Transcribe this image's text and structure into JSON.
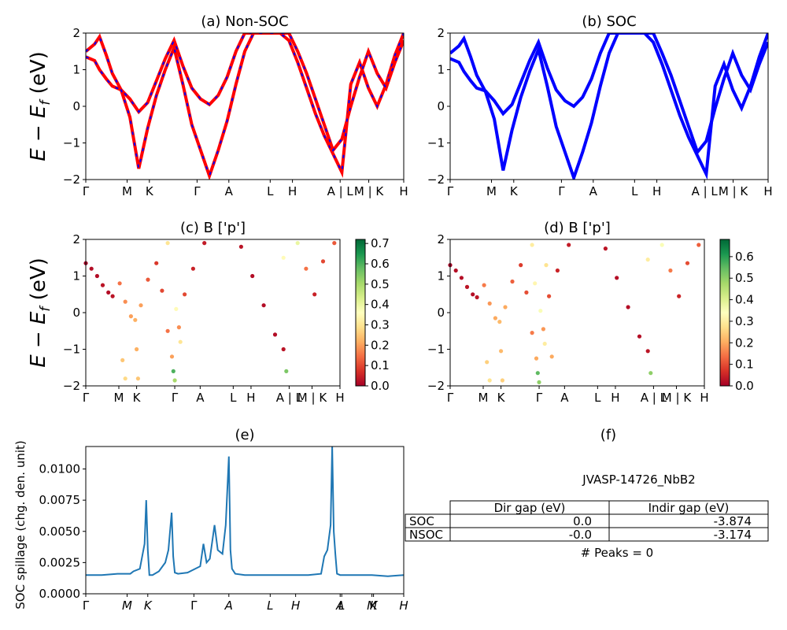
{
  "colors": {
    "nonsoc_line": "#ff0000",
    "nonsoc_dash": "#0000ff",
    "soc_line": "#0000ff",
    "spillage_line": "#1f77b4",
    "colormap": [
      "#a50026",
      "#d73027",
      "#f46d43",
      "#fdae61",
      "#fee08b",
      "#ffffbf",
      "#d9ef8b",
      "#a6d96a",
      "#66bd63",
      "#1a9850",
      "#006837"
    ]
  },
  "kpath_labels": [
    "Γ",
    "M",
    "K",
    "Γ",
    "A",
    "L",
    "H",
    "A | L",
    "M | K",
    "H"
  ],
  "chart_data": [
    {
      "id": "a",
      "type": "line",
      "title": "(a) Non-SOC",
      "ylabel": "E − E_f (eV)",
      "ylim": [
        -2,
        2
      ],
      "yticks": [
        "2",
        "1",
        "0",
        "−1",
        "−2"
      ],
      "xticks": [
        "Γ",
        "M",
        "K",
        "Γ",
        "A",
        "L",
        "H",
        "A | L",
        "M | K",
        "H"
      ],
      "x": [
        0,
        0.25,
        0.39,
        0.58,
        0.75,
        1.0,
        1.25,
        1.5,
        1.75,
        2.0,
        2.25,
        2.5,
        2.75,
        3.0,
        3.25,
        3.5,
        3.75,
        4.0,
        4.25,
        4.5,
        4.75,
        5.0,
        5.25,
        5.5,
        5.75,
        6.0,
        6.25,
        6.5,
        6.75,
        7.0,
        7.25,
        7.5,
        7.75,
        8.0,
        8.25,
        8.5,
        8.75,
        9.0
      ],
      "series": [
        {
          "values": [
            1.35,
            1.25,
            1.0,
            0.75,
            0.55,
            0.45,
            0.2,
            -0.15,
            0.1,
            0.7,
            1.3,
            1.8,
            1.1,
            0.5,
            0.2,
            0.05,
            0.3,
            0.8,
            1.5,
            2.0,
            2.0,
            2.0,
            2.0,
            2.0,
            1.8,
            1.2,
            0.5,
            -0.2,
            -0.8,
            -1.3,
            -1.8,
            0.6,
            1.2,
            0.5,
            0.0,
            0.6,
            1.4,
            2.0
          ]
        },
        {
          "values": [
            1.5,
            1.7,
            1.9,
            1.4,
            0.9,
            0.45,
            -0.3,
            -1.7,
            -0.6,
            0.3,
            1.0,
            1.6,
            0.6,
            -0.5,
            -1.2,
            -1.9,
            -1.2,
            -0.4,
            0.6,
            1.5,
            2.0,
            2.0,
            2.0,
            2.0,
            2.0,
            1.5,
            0.9,
            0.2,
            -0.5,
            -1.2,
            -0.9,
            0.0,
            0.8,
            1.5,
            0.9,
            0.5,
            1.2,
            1.8
          ]
        }
      ]
    },
    {
      "id": "b",
      "type": "line",
      "title": "(b) SOC",
      "ylim": [
        -2,
        2
      ],
      "yticks": [
        "2",
        "1",
        "0",
        "−1",
        "−2"
      ],
      "xticks": [
        "Γ",
        "M",
        "K",
        "Γ",
        "A",
        "L",
        "H",
        "A | L",
        "M | K",
        "H"
      ],
      "x": [
        0,
        0.25,
        0.39,
        0.58,
        0.75,
        1.0,
        1.25,
        1.5,
        1.75,
        2.0,
        2.25,
        2.5,
        2.75,
        3.0,
        3.25,
        3.5,
        3.75,
        4.0,
        4.25,
        4.5,
        4.75,
        5.0,
        5.25,
        5.5,
        5.75,
        6.0,
        6.25,
        6.5,
        6.75,
        7.0,
        7.25,
        7.5,
        7.75,
        8.0,
        8.25,
        8.5,
        8.75,
        9.0
      ],
      "series": [
        {
          "values": [
            1.3,
            1.2,
            0.95,
            0.7,
            0.5,
            0.42,
            0.15,
            -0.2,
            0.05,
            0.65,
            1.25,
            1.75,
            1.05,
            0.45,
            0.15,
            0.0,
            0.25,
            0.75,
            1.45,
            2.0,
            2.0,
            2.0,
            2.0,
            2.0,
            1.75,
            1.15,
            0.45,
            -0.25,
            -0.85,
            -1.35,
            -1.85,
            0.55,
            1.15,
            0.45,
            -0.05,
            0.55,
            1.35,
            2.0
          ]
        },
        {
          "values": [
            1.45,
            1.65,
            1.85,
            1.35,
            0.85,
            0.4,
            -0.35,
            -1.75,
            -0.65,
            0.25,
            0.95,
            1.55,
            0.55,
            -0.55,
            -1.25,
            -1.95,
            -1.25,
            -0.45,
            0.55,
            1.45,
            2.0,
            2.0,
            2.0,
            2.0,
            2.0,
            1.45,
            0.85,
            0.15,
            -0.55,
            -1.25,
            -0.95,
            -0.05,
            0.75,
            1.45,
            0.85,
            0.45,
            1.15,
            1.75
          ]
        }
      ]
    },
    {
      "id": "c",
      "type": "scatter",
      "title": "(c)  B ['p']",
      "ylabel": "E − E_f (eV)",
      "ylim": [
        -2,
        2
      ],
      "yticks": [
        "2",
        "1",
        "0",
        "−1",
        "−2"
      ],
      "xticks": [
        "Γ",
        "M",
        "K",
        "Γ",
        "A",
        "L",
        "H",
        "A | L",
        "M | K",
        "H"
      ],
      "colorbar_ticks": [
        "0.7",
        "0.6",
        "0.5",
        "0.4",
        "0.3",
        "0.2",
        "0.1",
        "0.0"
      ],
      "colorbar_max": 0.72,
      "points": [
        {
          "x": 0.0,
          "y": 1.35,
          "v": 0.0
        },
        {
          "x": 0.2,
          "y": 1.2,
          "v": 0.02
        },
        {
          "x": 0.4,
          "y": 1.0,
          "v": 0.02
        },
        {
          "x": 0.6,
          "y": 0.75,
          "v": 0.03
        },
        {
          "x": 0.8,
          "y": 0.55,
          "v": 0.02
        },
        {
          "x": 0.95,
          "y": 0.45,
          "v": 0.03
        },
        {
          "x": 1.2,
          "y": 0.8,
          "v": 0.15
        },
        {
          "x": 1.4,
          "y": 0.3,
          "v": 0.18
        },
        {
          "x": 1.6,
          "y": -0.1,
          "v": 0.2
        },
        {
          "x": 1.75,
          "y": -0.2,
          "v": 0.22
        },
        {
          "x": 1.95,
          "y": 0.2,
          "v": 0.2
        },
        {
          "x": 2.2,
          "y": 0.9,
          "v": 0.12
        },
        {
          "x": 2.5,
          "y": 1.35,
          "v": 0.08
        },
        {
          "x": 2.7,
          "y": 0.6,
          "v": 0.1
        },
        {
          "x": 2.9,
          "y": -0.5,
          "v": 0.15
        },
        {
          "x": 3.05,
          "y": -1.2,
          "v": 0.2
        },
        {
          "x": 3.1,
          "y": -1.6,
          "v": 0.6
        },
        {
          "x": 3.15,
          "y": -1.85,
          "v": 0.5
        },
        {
          "x": 3.3,
          "y": -0.4,
          "v": 0.18
        },
        {
          "x": 3.5,
          "y": 0.5,
          "v": 0.1
        },
        {
          "x": 3.8,
          "y": 1.2,
          "v": 0.05
        },
        {
          "x": 4.2,
          "y": 1.9,
          "v": 0.04
        },
        {
          "x": 5.5,
          "y": 1.8,
          "v": 0.03
        },
        {
          "x": 5.9,
          "y": 1.0,
          "v": 0.02
        },
        {
          "x": 6.3,
          "y": 0.2,
          "v": 0.02
        },
        {
          "x": 6.7,
          "y": -0.6,
          "v": 0.02
        },
        {
          "x": 7.0,
          "y": -1.0,
          "v": 0.03
        },
        {
          "x": 7.1,
          "y": -1.6,
          "v": 0.55
        },
        {
          "x": 7.0,
          "y": 1.5,
          "v": 0.35
        },
        {
          "x": 7.5,
          "y": 1.9,
          "v": 0.4
        },
        {
          "x": 7.8,
          "y": 1.2,
          "v": 0.15
        },
        {
          "x": 8.1,
          "y": 0.5,
          "v": 0.05
        },
        {
          "x": 8.4,
          "y": 1.4,
          "v": 0.1
        },
        {
          "x": 8.8,
          "y": 1.9,
          "v": 0.12
        },
        {
          "x": 1.3,
          "y": -1.3,
          "v": 0.25
        },
        {
          "x": 1.4,
          "y": -1.8,
          "v": 0.28
        },
        {
          "x": 1.8,
          "y": -1.0,
          "v": 0.22
        },
        {
          "x": 1.85,
          "y": -1.8,
          "v": 0.25
        },
        {
          "x": 2.9,
          "y": 1.9,
          "v": 0.3
        },
        {
          "x": 3.2,
          "y": 0.1,
          "v": 0.35
        },
        {
          "x": 3.35,
          "y": -0.8,
          "v": 0.3
        }
      ]
    },
    {
      "id": "d",
      "type": "scatter",
      "title": "(d) B ['p']",
      "ylim": [
        -2,
        2
      ],
      "yticks": [
        "2",
        "1",
        "0",
        "−1",
        "−2"
      ],
      "xticks": [
        "Γ",
        "M",
        "K",
        "Γ",
        "A",
        "L",
        "H",
        "A | L",
        "M | K",
        "H"
      ],
      "colorbar_ticks": [
        "0.6",
        "0.5",
        "0.4",
        "0.3",
        "0.2",
        "0.1",
        "0.0"
      ],
      "colorbar_max": 0.68,
      "points": [
        {
          "x": 0.0,
          "y": 1.3,
          "v": 0.0
        },
        {
          "x": 0.2,
          "y": 1.15,
          "v": 0.02
        },
        {
          "x": 0.4,
          "y": 0.95,
          "v": 0.02
        },
        {
          "x": 0.6,
          "y": 0.7,
          "v": 0.03
        },
        {
          "x": 0.8,
          "y": 0.5,
          "v": 0.02
        },
        {
          "x": 0.95,
          "y": 0.42,
          "v": 0.03
        },
        {
          "x": 1.2,
          "y": 0.75,
          "v": 0.15
        },
        {
          "x": 1.4,
          "y": 0.25,
          "v": 0.18
        },
        {
          "x": 1.6,
          "y": -0.15,
          "v": 0.2
        },
        {
          "x": 1.75,
          "y": -0.25,
          "v": 0.22
        },
        {
          "x": 1.95,
          "y": 0.15,
          "v": 0.2
        },
        {
          "x": 2.2,
          "y": 0.85,
          "v": 0.12
        },
        {
          "x": 2.5,
          "y": 1.3,
          "v": 0.08
        },
        {
          "x": 2.7,
          "y": 0.55,
          "v": 0.1
        },
        {
          "x": 2.9,
          "y": -0.55,
          "v": 0.15
        },
        {
          "x": 3.05,
          "y": -1.25,
          "v": 0.2
        },
        {
          "x": 3.1,
          "y": -1.65,
          "v": 0.55
        },
        {
          "x": 3.15,
          "y": -1.9,
          "v": 0.5
        },
        {
          "x": 3.3,
          "y": -0.45,
          "v": 0.18
        },
        {
          "x": 3.5,
          "y": 0.45,
          "v": 0.1
        },
        {
          "x": 3.8,
          "y": 1.15,
          "v": 0.05
        },
        {
          "x": 4.2,
          "y": 1.85,
          "v": 0.04
        },
        {
          "x": 5.5,
          "y": 1.75,
          "v": 0.03
        },
        {
          "x": 5.9,
          "y": 0.95,
          "v": 0.02
        },
        {
          "x": 6.3,
          "y": 0.15,
          "v": 0.02
        },
        {
          "x": 6.7,
          "y": -0.65,
          "v": 0.02
        },
        {
          "x": 7.0,
          "y": -1.05,
          "v": 0.03
        },
        {
          "x": 7.1,
          "y": -1.65,
          "v": 0.5
        },
        {
          "x": 7.0,
          "y": 1.45,
          "v": 0.3
        },
        {
          "x": 7.5,
          "y": 1.85,
          "v": 0.35
        },
        {
          "x": 7.8,
          "y": 1.15,
          "v": 0.15
        },
        {
          "x": 8.1,
          "y": 0.45,
          "v": 0.05
        },
        {
          "x": 8.4,
          "y": 1.35,
          "v": 0.1
        },
        {
          "x": 8.8,
          "y": 1.85,
          "v": 0.12
        },
        {
          "x": 1.3,
          "y": -1.35,
          "v": 0.25
        },
        {
          "x": 1.4,
          "y": -1.85,
          "v": 0.28
        },
        {
          "x": 1.8,
          "y": -1.05,
          "v": 0.22
        },
        {
          "x": 1.85,
          "y": -1.85,
          "v": 0.25
        },
        {
          "x": 2.9,
          "y": 1.85,
          "v": 0.3
        },
        {
          "x": 3.2,
          "y": 0.05,
          "v": 0.35
        },
        {
          "x": 3.35,
          "y": -0.85,
          "v": 0.3
        },
        {
          "x": 3.6,
          "y": -1.2,
          "v": 0.2
        },
        {
          "x": 3.0,
          "y": 0.8,
          "v": 0.32
        },
        {
          "x": 3.4,
          "y": 1.3,
          "v": 0.28
        }
      ]
    },
    {
      "id": "e",
      "type": "line",
      "title": "(e)",
      "ylabel": "SOC spillage (chg. den. unit)",
      "ylim": [
        0,
        0.0118
      ],
      "yticks": [
        "0.0100",
        "0.0075",
        "0.0050",
        "0.0025",
        "0.0000"
      ],
      "ytick_values": [
        0.01,
        0.0075,
        0.005,
        0.0025,
        0.0
      ],
      "xticks": [
        "Γ",
        "M",
        "K",
        "Γ",
        "A",
        "L",
        "H",
        "A",
        "L",
        "M",
        "K",
        "H"
      ],
      "xtick_positions": [
        0,
        1.3,
        1.95,
        3.4,
        4.5,
        5.8,
        6.6,
        8.0,
        8.05,
        9.0,
        9.05,
        10.0
      ],
      "x": [
        0,
        0.5,
        1.0,
        1.4,
        1.5,
        1.7,
        1.85,
        1.9,
        1.95,
        2.0,
        2.1,
        2.3,
        2.5,
        2.6,
        2.7,
        2.75,
        2.8,
        2.9,
        3.2,
        3.6,
        3.7,
        3.8,
        3.9,
        4.05,
        4.15,
        4.3,
        4.4,
        4.5,
        4.55,
        4.6,
        4.7,
        5.0,
        5.5,
        6.0,
        6.5,
        7.0,
        7.4,
        7.5,
        7.6,
        7.7,
        7.75,
        7.8,
        7.85,
        7.9,
        8.0,
        8.3,
        8.6,
        9.0,
        9.5,
        10.0
      ],
      "values": [
        0.0015,
        0.0015,
        0.0016,
        0.0016,
        0.0018,
        0.002,
        0.004,
        0.0075,
        0.0035,
        0.0015,
        0.0015,
        0.0018,
        0.0025,
        0.0035,
        0.0065,
        0.003,
        0.0017,
        0.0016,
        0.0017,
        0.0022,
        0.004,
        0.0025,
        0.0028,
        0.0055,
        0.0035,
        0.0032,
        0.0055,
        0.011,
        0.0035,
        0.002,
        0.0016,
        0.0015,
        0.0015,
        0.0015,
        0.0015,
        0.0015,
        0.0016,
        0.003,
        0.0035,
        0.0055,
        0.0118,
        0.005,
        0.0032,
        0.0016,
        0.0015,
        0.0015,
        0.0015,
        0.0015,
        0.0014,
        0.0015
      ]
    }
  ],
  "table_panel": {
    "title": "(f)",
    "material": "JVASP-14726_NbB2",
    "columns": [
      "Dir gap (eV)",
      "Indir gap (eV)"
    ],
    "rows": [
      {
        "label": "SOC",
        "dir": "0.0",
        "indir": "-3.874"
      },
      {
        "label": "NSOC",
        "dir": "-0.0",
        "indir": "-3.174"
      }
    ],
    "peaks": "# Peaks = 0"
  }
}
